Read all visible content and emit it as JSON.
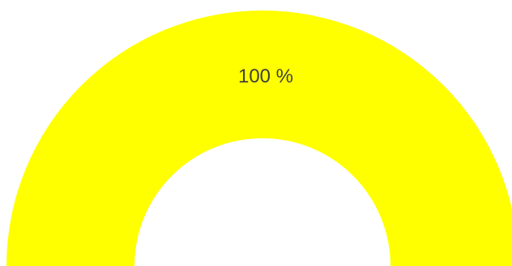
{
  "chart_data": {
    "type": "gauge",
    "value": 100,
    "max": 100,
    "value_label": "100 %",
    "fill_color": "#ffff00",
    "track_color": "#ffffff",
    "label_color": "#404040"
  }
}
